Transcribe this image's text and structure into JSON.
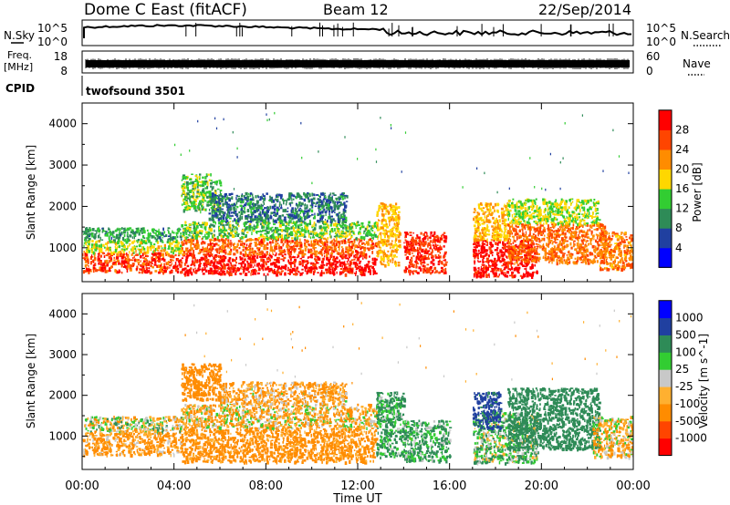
{
  "header": {
    "title": "Dome C East (fitACF)",
    "beam": "Beam 12",
    "date": "22/Sep/2014"
  },
  "status_panels": {
    "nsky_label": "N.Sky",
    "nsky_ticks": [
      "10^5",
      "10^0"
    ],
    "nsearch_label": "N.Search",
    "nsearch_ticks": [
      "10^5",
      "10^0"
    ],
    "freq_label_line1": "Freq.",
    "freq_label_line2": "[MHz]",
    "freq_ticks": [
      "18",
      "8"
    ],
    "nave_label": "Nave",
    "nave_ticks": [
      "60",
      "0"
    ],
    "cpid_label": "CPID",
    "cpid_value": "twofsound 3501"
  },
  "x_axis": {
    "label": "Time UT",
    "ticks": [
      "00:00",
      "04:00",
      "08:00",
      "12:00",
      "16:00",
      "20:00",
      "00:00"
    ]
  },
  "colors": {
    "power_scale": [
      "#0000ff",
      "#2040a0",
      "#2e8b57",
      "#32cd32",
      "#ffd700",
      "#ff8c00",
      "#ff4500",
      "#ff0000"
    ],
    "velocity_scale": [
      "#ff0000",
      "#ff4500",
      "#ff8c00",
      "#ffb030",
      "#c8c8c8",
      "#32cd32",
      "#2e8b57",
      "#2040a0",
      "#0000ff"
    ]
  },
  "chart_data": [
    {
      "type": "heatmap",
      "panel": "power",
      "xlabel": "",
      "ylabel": "Slant Range [km]",
      "xlim": [
        0,
        24
      ],
      "ylim": [
        180,
        4500
      ],
      "yticks": [
        "1000",
        "2000",
        "3000",
        "4000"
      ],
      "colorbar_label": "Power [dB]",
      "colorbar_ticks": [
        "4",
        "8",
        "12",
        "16",
        "20",
        "24",
        "28"
      ],
      "colorbar_range": [
        0,
        32
      ],
      "blobs": [
        {
          "t0": 0.0,
          "t1": 4.3,
          "r0": 420,
          "r1": 900,
          "v": 27
        },
        {
          "t0": 0.0,
          "t1": 4.3,
          "r0": 900,
          "r1": 1200,
          "v": 17
        },
        {
          "t0": 0.0,
          "t1": 4.3,
          "r0": 1200,
          "r1": 1500,
          "v": 11
        },
        {
          "t0": 4.3,
          "t1": 12.8,
          "r0": 380,
          "r1": 850,
          "v": 30
        },
        {
          "t0": 4.3,
          "t1": 12.8,
          "r0": 850,
          "r1": 1250,
          "v": 25
        },
        {
          "t0": 4.3,
          "t1": 12.8,
          "r0": 1250,
          "r1": 1650,
          "v": 14
        },
        {
          "t0": 4.3,
          "t1": 6.0,
          "r0": 1900,
          "r1": 2800,
          "v": 14
        },
        {
          "t0": 5.5,
          "t1": 11.5,
          "r0": 1650,
          "r1": 2350,
          "v": 9
        },
        {
          "t0": 12.8,
          "t1": 13.8,
          "r0": 600,
          "r1": 2100,
          "v": 20
        },
        {
          "t0": 14.0,
          "t1": 15.8,
          "r0": 400,
          "r1": 1400,
          "v": 28
        },
        {
          "t0": 17.0,
          "t1": 19.8,
          "r0": 320,
          "r1": 1200,
          "v": 30
        },
        {
          "t0": 17.0,
          "t1": 18.5,
          "r0": 1200,
          "r1": 2100,
          "v": 20
        },
        {
          "t0": 18.5,
          "t1": 22.8,
          "r0": 650,
          "r1": 1600,
          "v": 24
        },
        {
          "t0": 18.5,
          "t1": 22.5,
          "r0": 1600,
          "r1": 2200,
          "v": 16
        },
        {
          "t0": 22.5,
          "t1": 24.0,
          "r0": 500,
          "r1": 1400,
          "v": 23
        }
      ]
    },
    {
      "type": "heatmap",
      "panel": "velocity",
      "xlabel": "Time UT",
      "ylabel": "Slant Range [km]",
      "xlim": [
        0,
        24
      ],
      "ylim": [
        180,
        4500
      ],
      "yticks": [
        "1000",
        "2000",
        "3000",
        "4000"
      ],
      "colorbar_label": "Velocity [m s^-1]",
      "colorbar_ticks": [
        "-1000",
        "-500",
        "-100",
        "-25",
        "25",
        "100",
        "500",
        "1000"
      ],
      "blobs": [
        {
          "t0": 0.0,
          "t1": 4.3,
          "r0": 1100,
          "r1": 1500,
          "v": 0
        },
        {
          "t0": 0.0,
          "t1": 4.3,
          "r0": 550,
          "r1": 1100,
          "v": -150
        },
        {
          "t0": 4.3,
          "t1": 12.8,
          "r0": 380,
          "r1": 1200,
          "v": -200
        },
        {
          "t0": 4.3,
          "t1": 12.8,
          "r0": 1200,
          "r1": 1800,
          "v": -80
        },
        {
          "t0": 4.3,
          "t1": 6.0,
          "r0": 1900,
          "r1": 2800,
          "v": -250
        },
        {
          "t0": 6.0,
          "t1": 11.5,
          "r0": 1800,
          "r1": 2350,
          "v": -120
        },
        {
          "t0": 12.8,
          "t1": 14.0,
          "r0": 500,
          "r1": 2100,
          "v": 150
        },
        {
          "t0": 14.0,
          "t1": 16.0,
          "r0": 400,
          "r1": 1400,
          "v": 120
        },
        {
          "t0": 17.0,
          "t1": 19.8,
          "r0": 350,
          "r1": 1600,
          "v": 80
        },
        {
          "t0": 17.0,
          "t1": 18.2,
          "r0": 1200,
          "r1": 2100,
          "v": 600
        },
        {
          "t0": 18.5,
          "t1": 22.5,
          "r0": 700,
          "r1": 2200,
          "v": 300
        },
        {
          "t0": 22.2,
          "t1": 24.0,
          "r0": 500,
          "r1": 1500,
          "v": -60
        }
      ]
    }
  ]
}
